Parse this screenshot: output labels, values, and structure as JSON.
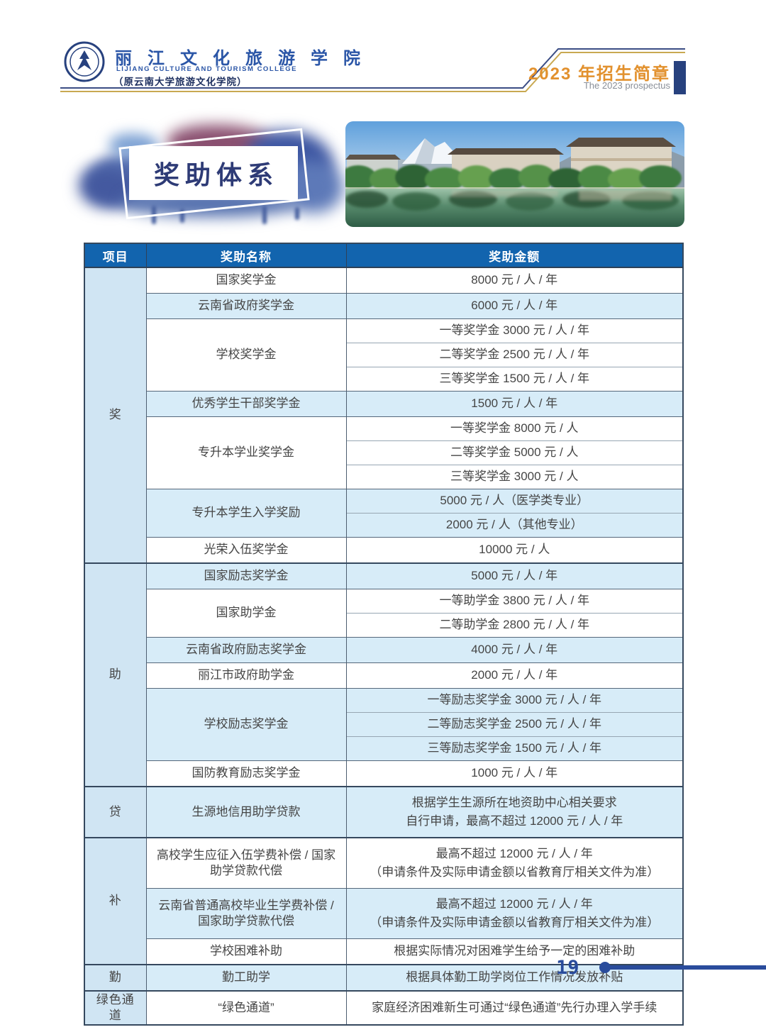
{
  "header": {
    "logo_icon": "college-emblem",
    "college_name_cn": "丽 江 文 化 旅 游 学 院",
    "college_name_en": "LIJIANG CULTURE AND TOURISM COLLEGE",
    "college_former": "（原云南大学旅游文化学院）",
    "prospectus_title": "2023 年招生简章",
    "prospectus_subtitle": "The 2023 prospectus"
  },
  "section": {
    "title": "奖助体系"
  },
  "table": {
    "columns": [
      "项目",
      "奖助名称",
      "奖助金额"
    ],
    "groups": [
      {
        "category": "奖",
        "items": [
          {
            "name": "国家奖学金",
            "shade": false,
            "values": [
              "8000 元 / 人 / 年"
            ]
          },
          {
            "name": "云南省政府奖学金",
            "shade": true,
            "values": [
              "6000 元 / 人 / 年"
            ]
          },
          {
            "name": "学校奖学金",
            "shade": false,
            "values": [
              "一等奖学金 3000 元 / 人 / 年",
              "二等奖学金 2500 元 / 人 / 年",
              "三等奖学金 1500 元 / 人 / 年"
            ]
          },
          {
            "name": "优秀学生干部奖学金",
            "shade": true,
            "values": [
              "1500 元 / 人 / 年"
            ]
          },
          {
            "name": "专升本学业奖学金",
            "shade": false,
            "values": [
              "一等奖学金 8000 元 / 人",
              "二等奖学金 5000 元 / 人",
              "三等奖学金 3000 元 / 人"
            ]
          },
          {
            "name": "专升本学生入学奖励",
            "shade": true,
            "values": [
              "5000 元 / 人（医学类专业）",
              "2000 元 / 人（其他专业）"
            ]
          },
          {
            "name": "光荣入伍奖学金",
            "shade": false,
            "values": [
              "10000 元 / 人"
            ]
          }
        ]
      },
      {
        "category": "助",
        "items": [
          {
            "name": "国家励志奖学金",
            "shade": true,
            "values": [
              "5000 元 / 人 / 年"
            ]
          },
          {
            "name": "国家助学金",
            "shade": false,
            "values": [
              "一等助学金 3800 元 / 人 / 年",
              "二等助学金 2800 元 / 人 / 年"
            ]
          },
          {
            "name": "云南省政府励志奖学金",
            "shade": true,
            "values": [
              "4000 元 / 人 / 年"
            ]
          },
          {
            "name": "丽江市政府助学金",
            "shade": false,
            "values": [
              "2000 元 / 人 / 年"
            ]
          },
          {
            "name": "学校励志奖学金",
            "shade": true,
            "values": [
              "一等励志奖学金 3000 元 / 人 / 年",
              "二等励志奖学金 2500 元 / 人 / 年",
              "三等励志奖学金 1500 元 / 人 / 年"
            ]
          },
          {
            "name": "国防教育励志奖学金",
            "shade": false,
            "values": [
              "1000 元 / 人 / 年"
            ]
          }
        ]
      },
      {
        "category": "贷",
        "items": [
          {
            "name": "生源地信用助学贷款",
            "shade": true,
            "values": [
              [
                "根据学生生源所在地资助中心相关要求",
                "自行申请，最高不超过 12000 元 / 人 / 年"
              ]
            ]
          }
        ]
      },
      {
        "category": "补",
        "items": [
          {
            "name": "高校学生应征入伍学费补偿 / 国家助学贷款代偿",
            "shade": false,
            "values": [
              [
                "最高不超过 12000 元 / 人 / 年",
                "（申请条件及实际申请金额以省教育厅相关文件为准）"
              ]
            ]
          },
          {
            "name": "云南省普通高校毕业生学费补偿 / 国家助学贷款代偿",
            "shade": true,
            "values": [
              [
                "最高不超过 12000 元 / 人 / 年",
                "（申请条件及实际申请金额以省教育厅相关文件为准）"
              ]
            ]
          },
          {
            "name": "学校困难补助",
            "shade": false,
            "values": [
              "根据实际情况对困难学生给予一定的困难补助"
            ]
          }
        ]
      },
      {
        "category": "勤",
        "items": [
          {
            "name": "勤工助学",
            "shade": true,
            "values": [
              "根据具体勤工助学岗位工作情况发放补贴"
            ]
          }
        ]
      },
      {
        "category": "绿色通道",
        "items": [
          {
            "name": "“绿色通道”",
            "shade": false,
            "values": [
              "家庭经济困难新生可通过“绿色通道”先行办理入学手续"
            ]
          }
        ]
      }
    ]
  },
  "footer": {
    "page_number": "19"
  },
  "colors": {
    "header_blue": "#1264ae",
    "row_light_blue": "#d7ecf8",
    "category_blue": "#d0e5f3",
    "accent_navy": "#2a4c9c",
    "bar_navy": "#27417e",
    "title_orange": "#e2912e",
    "gold_line": "#c9a952",
    "badge_navy": "#2e3b76"
  }
}
